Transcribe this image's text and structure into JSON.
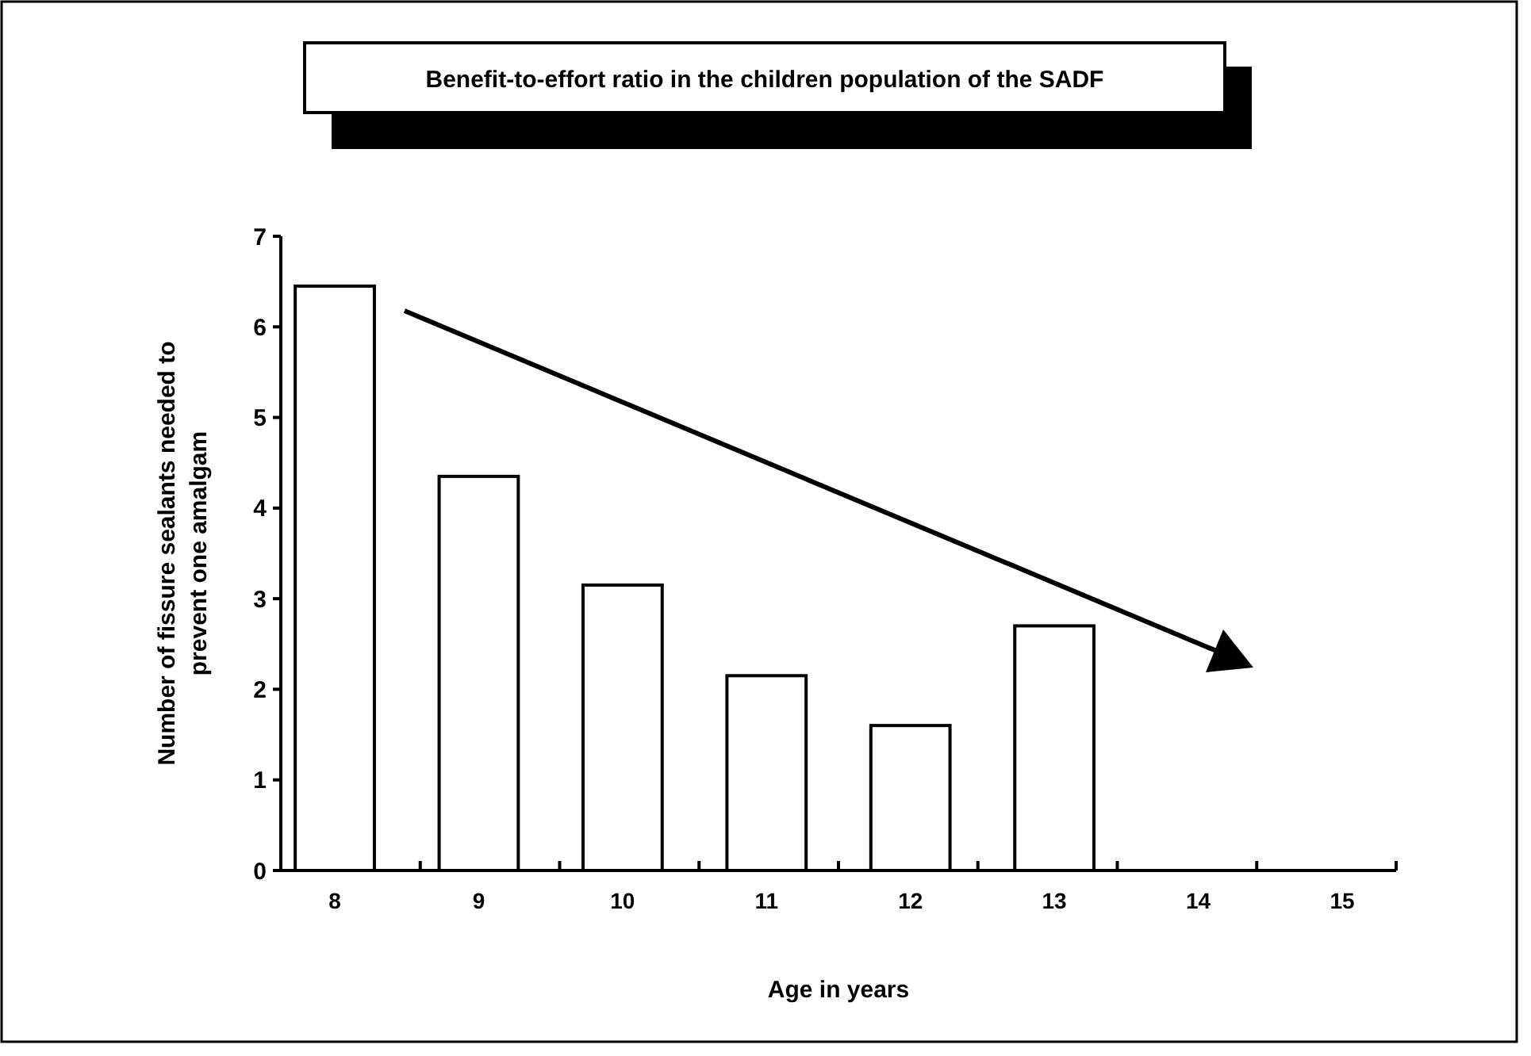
{
  "chart_data": {
    "type": "bar",
    "title": "Benefit-to-effort ratio in the children population of the SADF",
    "xlabel": "Age in years",
    "ylabel": "Number of fissure sealants needed to prevent one amalgam",
    "categories": [
      "8",
      "9",
      "10",
      "11",
      "12",
      "13",
      "14",
      "15"
    ],
    "values": [
      6.45,
      4.35,
      3.15,
      2.15,
      1.6,
      2.7,
      null,
      null
    ],
    "color": "#ffffff",
    "ylim": [
      0,
      7
    ],
    "yticks": [
      0,
      1,
      2,
      3,
      4,
      5,
      6,
      7
    ],
    "grid": false
  }
}
